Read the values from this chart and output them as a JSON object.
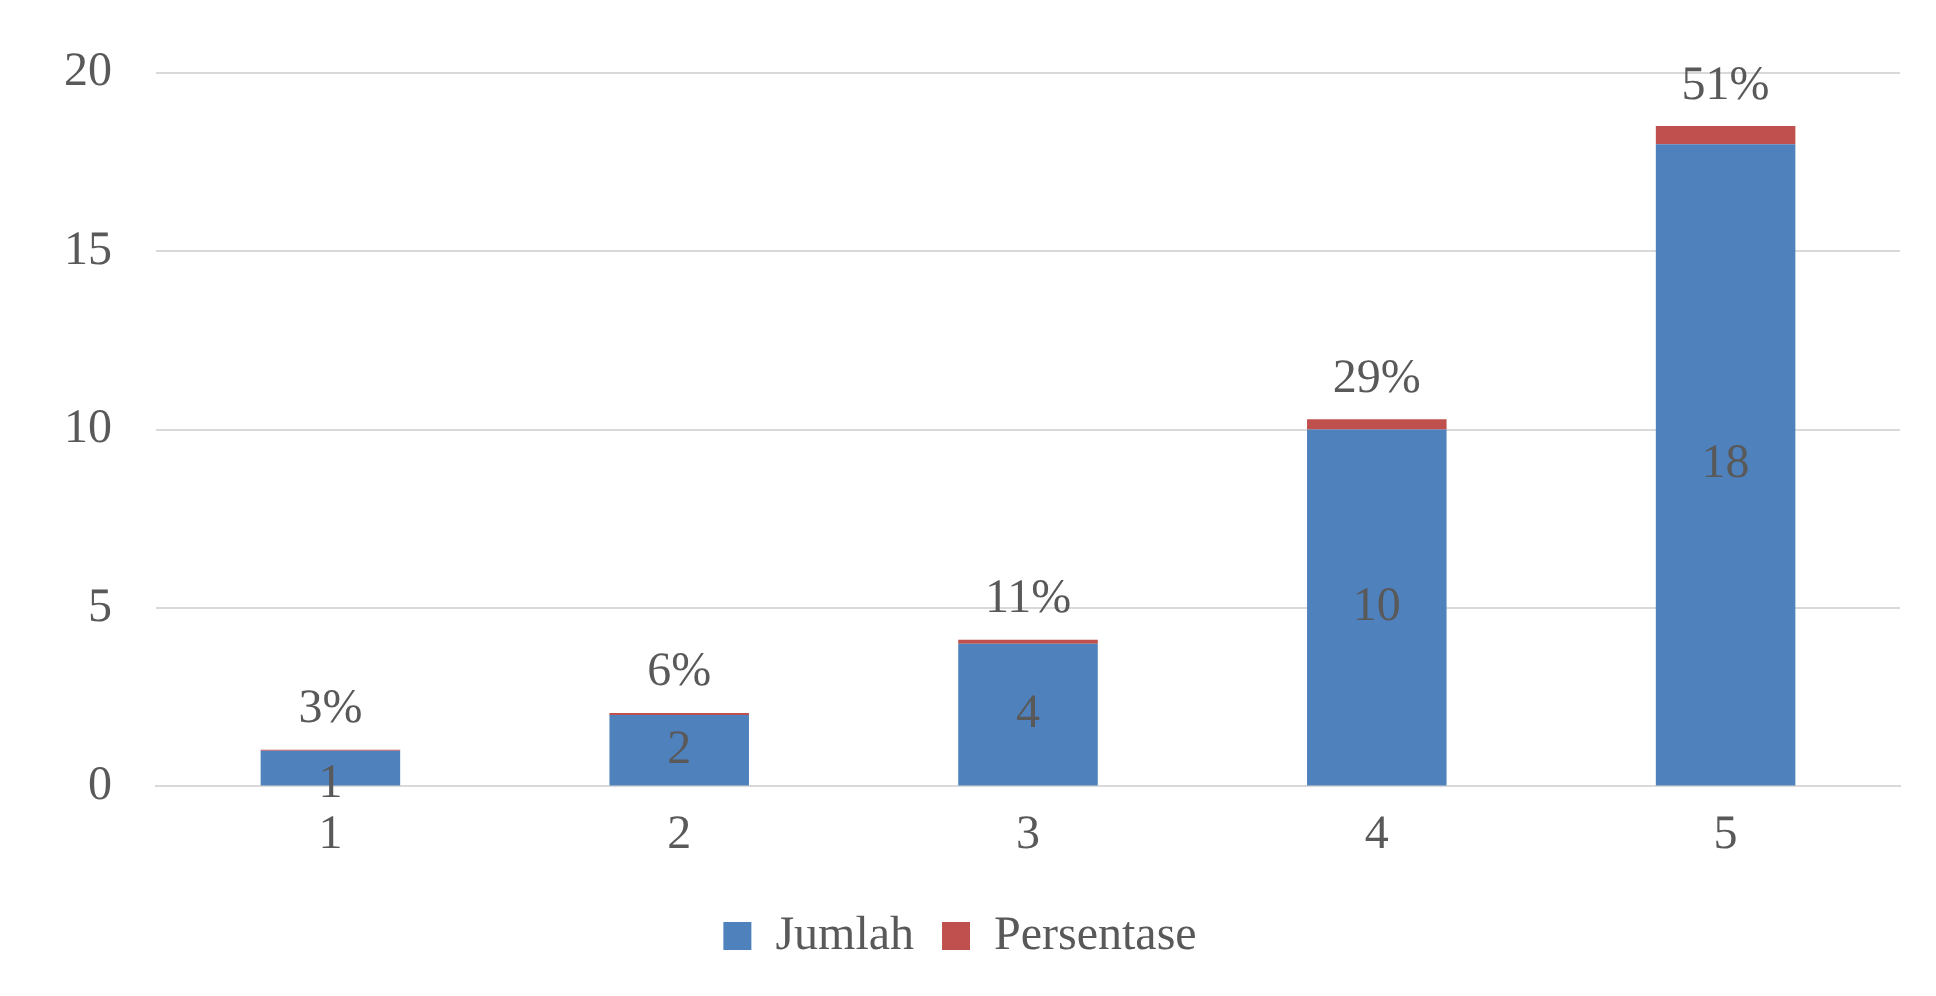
{
  "chart_data": {
    "type": "bar",
    "stacked": true,
    "categories": [
      "1",
      "2",
      "3",
      "4",
      "5"
    ],
    "series": [
      {
        "name": "Jumlah",
        "color": "#4f81bd",
        "values": [
          1,
          2,
          4,
          10,
          18
        ],
        "value_labels": [
          "1",
          "2",
          "4",
          "10",
          "18"
        ]
      },
      {
        "name": "Persentase",
        "color": "#c0504d",
        "values": [
          0.03,
          0.06,
          0.11,
          0.29,
          0.51
        ],
        "value_labels": [
          "3%",
          "6%",
          "11%",
          "29%",
          "51%"
        ]
      }
    ],
    "ylim": [
      0,
      20
    ],
    "yticks": [
      0,
      5,
      10,
      15,
      20
    ],
    "grid": "y",
    "legend": "bottom"
  }
}
